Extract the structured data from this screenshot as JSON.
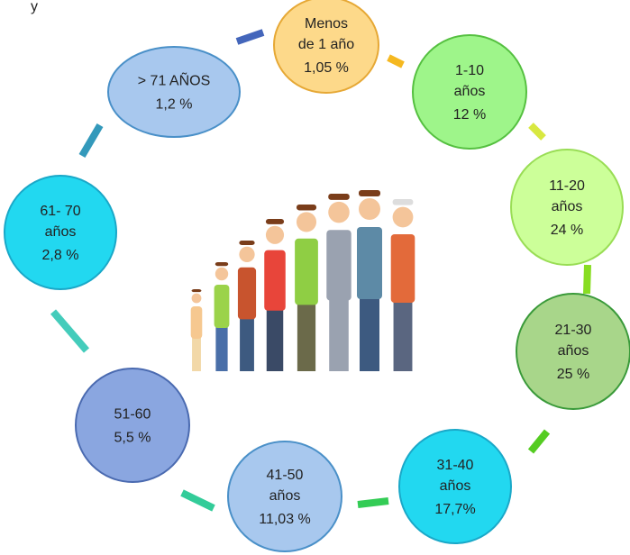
{
  "corner_text": "y",
  "nodes": [
    {
      "lines": [
        "Menos",
        "de 1 año"
      ],
      "value": "1,05 %"
    },
    {
      "lines": [
        "1-10",
        "años"
      ],
      "value": "12 %"
    },
    {
      "lines": [
        "11-20",
        "años"
      ],
      "value": "24 %"
    },
    {
      "lines": [
        "21-30",
        "años"
      ],
      "value": "25 %"
    },
    {
      "lines": [
        "31-40",
        "años"
      ],
      "value": "17,7%"
    },
    {
      "lines": [
        "41-50",
        "años"
      ],
      "value": "11,03 %"
    },
    {
      "lines": [
        "51-60"
      ],
      "value": "5,5 %"
    },
    {
      "lines": [
        "61- 70",
        "años"
      ],
      "value": "2,8 %"
    },
    {
      "lines": [
        "> 71 AÑOS"
      ],
      "value": "1,2 %"
    }
  ]
}
